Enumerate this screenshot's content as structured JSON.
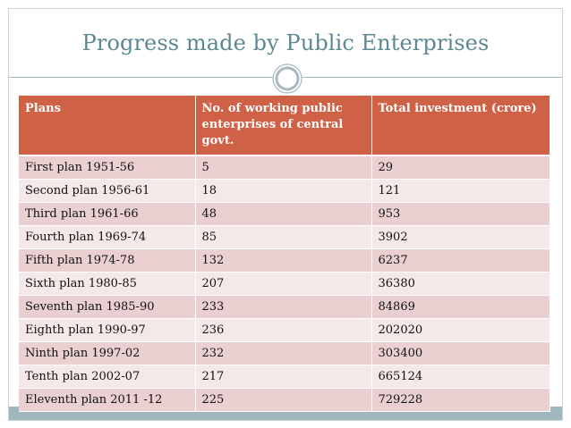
{
  "slide": {
    "title": "Progress made by Public Enterprises"
  },
  "table": {
    "headers": [
      "Plans",
      "No. of working public enterprises of central govt.",
      "Total investment (crore)"
    ],
    "rows": [
      [
        "First plan 1951-56",
        "5",
        "29"
      ],
      [
        "Second plan 1956-61",
        "18",
        "121"
      ],
      [
        "Third plan 1961-66",
        "48",
        "953"
      ],
      [
        "Fourth plan 1969-74",
        "85",
        "3902"
      ],
      [
        "Fifth plan 1974-78",
        "132",
        "6237"
      ],
      [
        "Sixth plan 1980-85",
        "207",
        "36380"
      ],
      [
        "Seventh plan 1985-90",
        "233",
        "84869"
      ],
      [
        "Eighth plan 1990-97",
        "236",
        "202020"
      ],
      [
        "Ninth plan 1997-02",
        "232",
        "303400"
      ],
      [
        "Tenth plan 2002-07",
        "217",
        "665124"
      ],
      [
        "Eleventh plan 2011 -12",
        "225",
        "729228"
      ]
    ]
  },
  "colors": {
    "title": "#5c8892",
    "header_bg": "#cf6147",
    "row_odd": "#ead0d0",
    "row_even": "#f5e8e8",
    "accent": "#9fb8bd"
  }
}
